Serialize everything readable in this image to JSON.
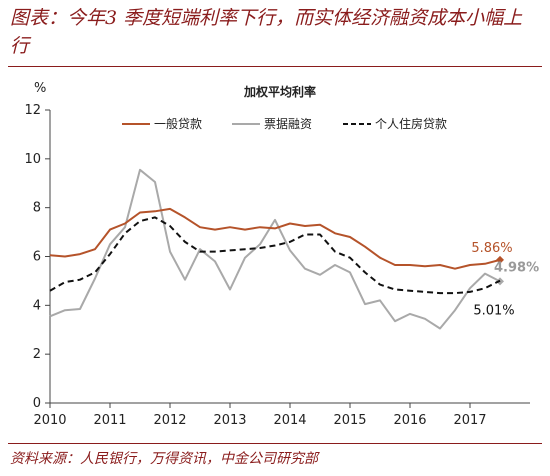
{
  "figure": {
    "title": "图表：今年3 季度短端利率下行，而实体经济融资成本小幅上行",
    "source": "资料来源：人民银行，万得资讯，中金公司研究部"
  },
  "chart_data": {
    "type": "line",
    "title": "加权平均利率",
    "ylabel": "%",
    "ylim": [
      0,
      12
    ],
    "yticks": [
      0,
      2,
      4,
      6,
      8,
      10,
      12
    ],
    "xlim": [
      2010,
      2018
    ],
    "xticks": [
      "2010",
      "2011",
      "2012",
      "2013",
      "2014",
      "2015",
      "2016",
      "2017"
    ],
    "grid": false,
    "legend_position": "top",
    "series": [
      {
        "name": "一般贷款",
        "color": "#b5532a",
        "style": "solid",
        "end_label": "5.86%",
        "x": [
          2010.0,
          2010.25,
          2010.5,
          2010.75,
          2011.0,
          2011.25,
          2011.5,
          2011.75,
          2012.0,
          2012.25,
          2012.5,
          2012.75,
          2013.0,
          2013.25,
          2013.5,
          2013.75,
          2014.0,
          2014.25,
          2014.5,
          2014.75,
          2015.0,
          2015.25,
          2015.5,
          2015.75,
          2016.0,
          2016.25,
          2016.5,
          2016.75,
          2017.0,
          2017.25,
          2017.5
        ],
        "y": [
          6.05,
          6.0,
          6.1,
          6.3,
          7.1,
          7.35,
          7.8,
          7.85,
          7.95,
          7.6,
          7.2,
          7.1,
          7.2,
          7.1,
          7.2,
          7.15,
          7.35,
          7.25,
          7.3,
          6.95,
          6.8,
          6.4,
          5.95,
          5.65,
          5.65,
          5.6,
          5.65,
          5.5,
          5.65,
          5.7,
          5.86
        ]
      },
      {
        "name": "票据融资",
        "color": "#a9a9a9",
        "style": "solid",
        "end_label": "4.98%",
        "x": [
          2010.0,
          2010.25,
          2010.5,
          2010.75,
          2011.0,
          2011.25,
          2011.5,
          2011.75,
          2012.0,
          2012.25,
          2012.5,
          2012.75,
          2013.0,
          2013.25,
          2013.5,
          2013.75,
          2014.0,
          2014.25,
          2014.5,
          2014.75,
          2015.0,
          2015.25,
          2015.5,
          2015.75,
          2016.0,
          2016.25,
          2016.5,
          2016.75,
          2017.0,
          2017.25,
          2017.5
        ],
        "y": [
          3.55,
          3.8,
          3.85,
          5.1,
          6.5,
          7.2,
          9.55,
          9.05,
          6.2,
          5.05,
          6.3,
          5.8,
          4.65,
          5.95,
          6.5,
          7.5,
          6.25,
          5.5,
          5.25,
          5.65,
          5.35,
          4.05,
          4.2,
          3.35,
          3.65,
          3.45,
          3.05,
          3.8,
          4.7,
          5.3,
          4.98
        ]
      },
      {
        "name": "个人住房贷款",
        "color": "#111111",
        "style": "dashed",
        "end_label": "5.01%",
        "x": [
          2010.0,
          2010.25,
          2010.5,
          2010.75,
          2011.0,
          2011.25,
          2011.5,
          2011.75,
          2012.0,
          2012.25,
          2012.5,
          2012.75,
          2013.0,
          2013.25,
          2013.5,
          2013.75,
          2014.0,
          2014.25,
          2014.5,
          2014.75,
          2015.0,
          2015.25,
          2015.5,
          2015.75,
          2016.0,
          2016.25,
          2016.5,
          2016.75,
          2017.0,
          2017.25,
          2017.5
        ],
        "y": [
          4.6,
          4.95,
          5.05,
          5.35,
          6.1,
          6.95,
          7.45,
          7.6,
          7.25,
          6.6,
          6.2,
          6.2,
          6.25,
          6.3,
          6.35,
          6.45,
          6.6,
          6.9,
          6.9,
          6.2,
          5.95,
          5.35,
          4.85,
          4.65,
          4.6,
          4.55,
          4.5,
          4.5,
          4.55,
          4.7,
          5.01
        ]
      }
    ]
  }
}
